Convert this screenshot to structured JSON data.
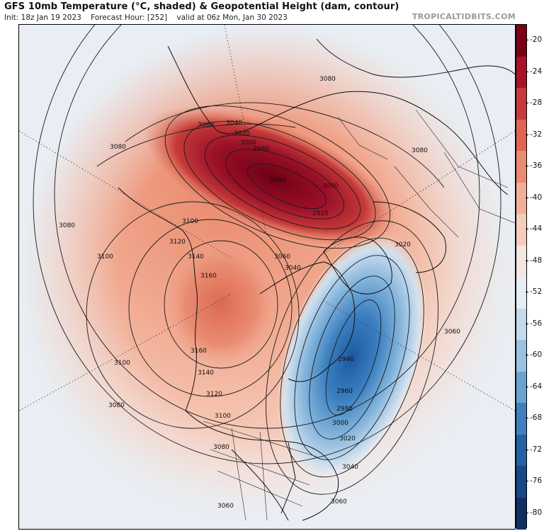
{
  "header": {
    "title": "GFS 10mb Temperature (°C, shaded) & Geopotential Height (dam, contour)",
    "init": "Init: 18z Jan 19 2023",
    "forecast_hour": "Forecast Hour: [252]",
    "valid": "valid at 06z Mon, Jan 30 2023",
    "site": "TROPICALTIDBITS.COM"
  },
  "colorbar": {
    "ticks": [
      "-20",
      "-24",
      "-28",
      "-32",
      "-36",
      "-40",
      "-44",
      "-48",
      "-52",
      "-56",
      "-60",
      "-64",
      "-68",
      "-72",
      "-76",
      "-80"
    ],
    "colors": [
      "#7a0016",
      "#a8132a",
      "#c73a3a",
      "#de6650",
      "#ea8c72",
      "#f2ae97",
      "#f6cdbb",
      "#f5e6df",
      "#e6eef5",
      "#c3d9ec",
      "#99c1e2",
      "#6aa3d2",
      "#3f80bf",
      "#2361a6",
      "#18478a",
      "#102f63"
    ]
  },
  "contours": {
    "labels": [
      "3080",
      "3060",
      "3040",
      "3020",
      "3000",
      "2980",
      "2940",
      "3000",
      "2920",
      "3080",
      "3080",
      "3100",
      "3100",
      "3120",
      "3140",
      "3160",
      "3080",
      "3060",
      "3040",
      "3160",
      "3140",
      "3120",
      "3100",
      "3100",
      "3080",
      "3080",
      "2940",
      "2960",
      "2980",
      "3000",
      "3020",
      "3040",
      "3060",
      "3060",
      "3060",
      "3020"
    ]
  }
}
